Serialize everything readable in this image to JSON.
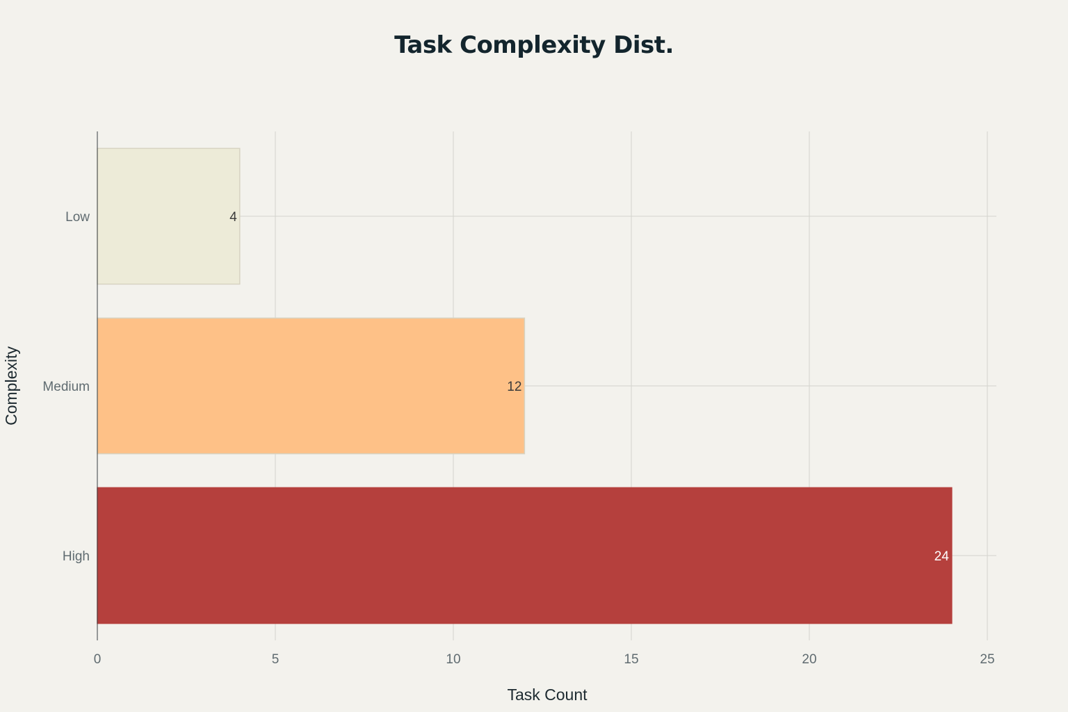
{
  "chart_data": {
    "type": "bar",
    "orientation": "horizontal",
    "title": "Task Complexity Dist.",
    "xlabel": "Task Count",
    "ylabel": "Complexity",
    "categories": [
      "Low",
      "Medium",
      "High"
    ],
    "values": [
      4,
      12,
      24
    ],
    "data_labels": [
      "4",
      "12",
      "24"
    ],
    "xlim": [
      0,
      25
    ],
    "xticks": [
      0,
      5,
      10,
      15,
      20,
      25
    ],
    "grid": true,
    "legend": "none",
    "colors": {
      "Low": "#edebd8",
      "Medium": "#fec187",
      "High": "#b5403d"
    },
    "label_colors": {
      "Low": "#3a3a3a",
      "Medium": "#3a3a3a",
      "High": "#ffffff"
    }
  }
}
